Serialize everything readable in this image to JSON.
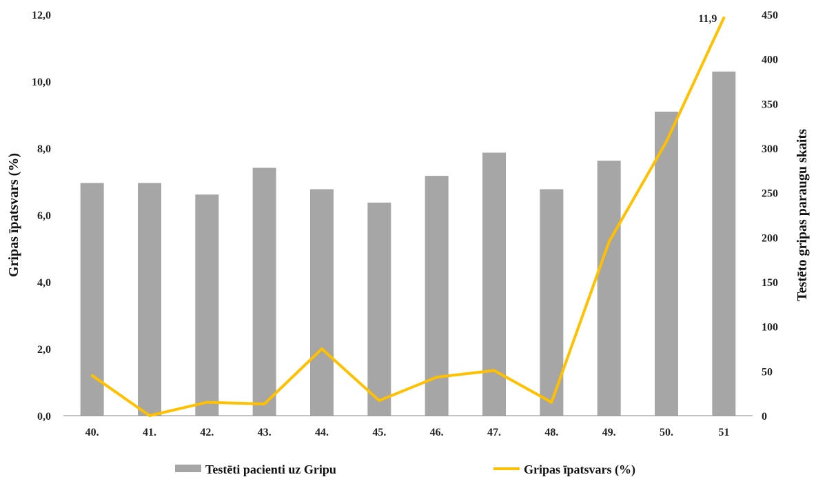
{
  "chart_data": {
    "type": "bar",
    "categories": [
      "40.",
      "41.",
      "42.",
      "43.",
      "44.",
      "45.",
      "46.",
      "47.",
      "48.",
      "49.",
      "50.",
      "51"
    ],
    "series": [
      {
        "name": "Testēti pacienti uz Gripu",
        "type": "bar",
        "axis": "right",
        "color": "#a6a6a6",
        "values": [
          261,
          261,
          248,
          278,
          254,
          239,
          269,
          295,
          254,
          286,
          341,
          386
        ]
      },
      {
        "name": "Gripas īpatsvars (%)",
        "type": "line",
        "axis": "left",
        "color": "#ffc000",
        "values": [
          1.2,
          0.0,
          0.4,
          0.35,
          2.0,
          0.45,
          1.15,
          1.35,
          0.4,
          5.2,
          8.2,
          11.9
        ]
      }
    ],
    "ylabel": "Gripas īpatsvars (%)",
    "y2label": "Testēto gripas paraugu skaits",
    "ylim": [
      0,
      12
    ],
    "y2lim": [
      0,
      450
    ],
    "yticks": [
      "0,0",
      "2,0",
      "4,0",
      "6,0",
      "8,0",
      "10,0",
      "12,0"
    ],
    "y2ticks": [
      "0",
      "50",
      "100",
      "150",
      "200",
      "250",
      "300",
      "350",
      "400",
      "450"
    ],
    "data_labels": [
      {
        "series": 1,
        "index": 11,
        "text": "11,9"
      }
    ],
    "grid": false,
    "legend": "bottom"
  }
}
